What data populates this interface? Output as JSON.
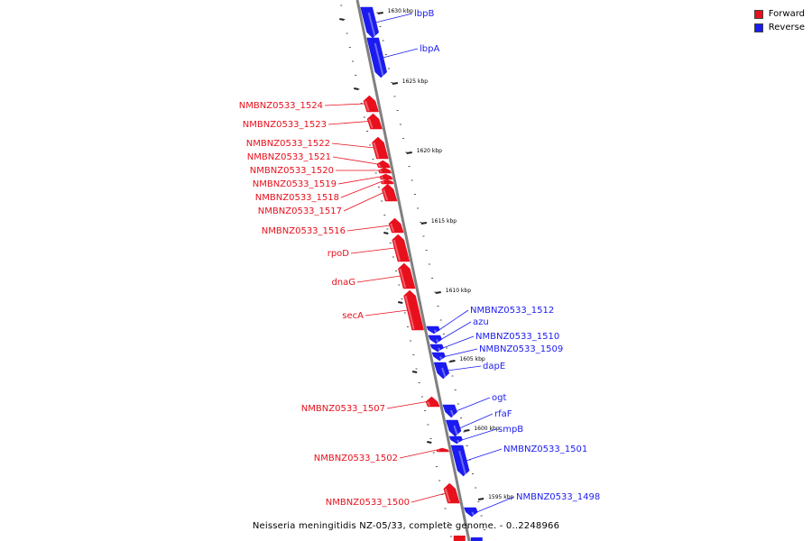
{
  "colors": {
    "forward": "#e8101c",
    "reverse": "#1b1bf0",
    "backbone": "#808080",
    "tick": "#222222"
  },
  "legend": {
    "forward_label": "Forward",
    "reverse_label": "Reverse"
  },
  "caption": "Neisseria meningitidis NZ-05/33, complete genome. - 0..2248966",
  "scale_labels": [
    "1630 kbp",
    "1625 kbp",
    "1620 kbp",
    "1615 kbp",
    "1610 kbp",
    "1605 kbp",
    "1600 kbp",
    "1595 kbp"
  ],
  "genes": [
    {
      "label": "lbpB",
      "strand": "reverse"
    },
    {
      "label": "lbpA",
      "strand": "reverse"
    },
    {
      "label": "NMBNZ0533_1524",
      "strand": "forward"
    },
    {
      "label": "NMBNZ0533_1523",
      "strand": "forward"
    },
    {
      "label": "NMBNZ0533_1522",
      "strand": "forward"
    },
    {
      "label": "NMBNZ0533_1521",
      "strand": "forward"
    },
    {
      "label": "NMBNZ0533_1520",
      "strand": "forward"
    },
    {
      "label": "NMBNZ0533_1519",
      "strand": "forward"
    },
    {
      "label": "NMBNZ0533_1518",
      "strand": "forward"
    },
    {
      "label": "NMBNZ0533_1517",
      "strand": "forward"
    },
    {
      "label": "NMBNZ0533_1516",
      "strand": "forward"
    },
    {
      "label": "rpoD",
      "strand": "forward"
    },
    {
      "label": "dnaG",
      "strand": "forward"
    },
    {
      "label": "secA",
      "strand": "forward"
    },
    {
      "label": "NMBNZ0533_1512",
      "strand": "reverse"
    },
    {
      "label": "azu",
      "strand": "reverse"
    },
    {
      "label": "NMBNZ0533_1510",
      "strand": "reverse"
    },
    {
      "label": "NMBNZ0533_1509",
      "strand": "reverse"
    },
    {
      "label": "dapE",
      "strand": "reverse"
    },
    {
      "label": "NMBNZ0533_1507",
      "strand": "forward"
    },
    {
      "label": "ogt",
      "strand": "reverse"
    },
    {
      "label": "rfaF",
      "strand": "reverse"
    },
    {
      "label": "smpB",
      "strand": "reverse"
    },
    {
      "label": "NMBNZ0533_1501",
      "strand": "reverse"
    },
    {
      "label": "NMBNZ0533_1502",
      "strand": "forward"
    },
    {
      "label": "NMBNZ0533_1500",
      "strand": "forward"
    },
    {
      "label": "NMBNZ0533_1498",
      "strand": "reverse"
    }
  ]
}
